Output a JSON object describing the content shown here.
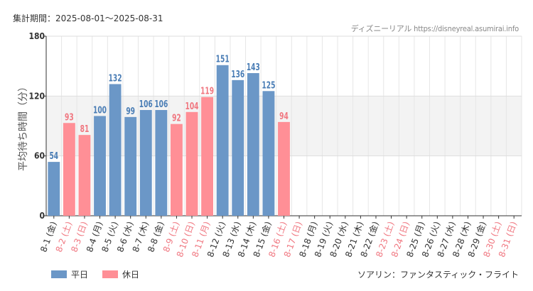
{
  "header": {
    "period": "集計期間：2025-08-01～2025-08-31",
    "source": "ディズニーリアル https://disneyreal.asumirai.info"
  },
  "legend": {
    "weekday": "平日",
    "holiday": "休日"
  },
  "footer": {
    "attraction": "ソアリン：ファンタスティック・フライト"
  },
  "colors": {
    "weekday": "#6b97c7",
    "holiday": "#ff8f96",
    "weekday_text": "#4a7db5",
    "holiday_text": "#f07780"
  },
  "chart_data": {
    "type": "bar",
    "ylabel": "平均待ち時間（分）",
    "ylim": [
      0,
      180
    ],
    "yticks": [
      0,
      60,
      120,
      180
    ],
    "categories": [
      "8-1 (金)",
      "8-2 (土)",
      "8-3 (日)",
      "8-4 (月)",
      "8-5 (火)",
      "8-6 (水)",
      "8-7 (木)",
      "8-8 (金)",
      "8-9 (土)",
      "8-10 (日)",
      "8-11 (月)",
      "8-12 (火)",
      "8-13 (水)",
      "8-14 (木)",
      "8-15 (金)",
      "8-16 (土)",
      "8-17 (日)",
      "8-18 (月)",
      "8-19 (火)",
      "8-20 (水)",
      "8-21 (木)",
      "8-22 (金)",
      "8-23 (土)",
      "8-24 (日)",
      "8-25 (月)",
      "8-26 (火)",
      "8-27 (水)",
      "8-28 (木)",
      "8-29 (金)",
      "8-30 (土)",
      "8-31 (日)"
    ],
    "values": [
      54,
      93,
      81,
      100,
      132,
      99,
      106,
      106,
      92,
      104,
      119,
      151,
      136,
      143,
      125,
      94,
      null,
      null,
      null,
      null,
      null,
      null,
      null,
      null,
      null,
      null,
      null,
      null,
      null,
      null,
      null
    ],
    "holiday": [
      false,
      true,
      true,
      false,
      false,
      false,
      false,
      false,
      true,
      true,
      true,
      false,
      false,
      false,
      false,
      true,
      true,
      false,
      false,
      false,
      false,
      false,
      true,
      true,
      false,
      false,
      false,
      false,
      false,
      true,
      true
    ],
    "series": [
      {
        "name": "平日"
      },
      {
        "name": "休日"
      }
    ]
  }
}
